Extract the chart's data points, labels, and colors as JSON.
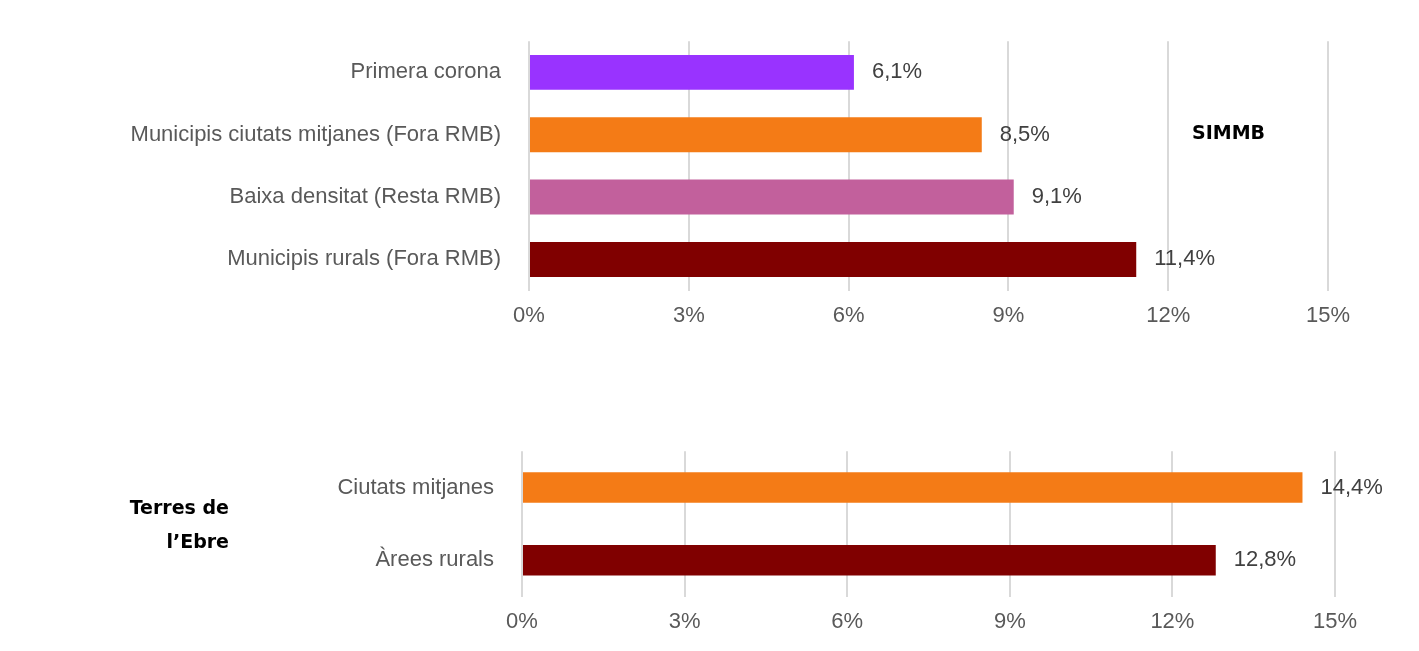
{
  "chart_data": [
    {
      "type": "bar",
      "orientation": "horizontal",
      "categories": [
        "Primera corona",
        "Municipis ciutats mitjanes (Fora RMB)",
        "Baixa densitat (Resta RMB)",
        "Municipis rurals (Fora RMB)"
      ],
      "values": [
        6.1,
        8.5,
        9.1,
        11.4
      ],
      "colors": [
        "#9933ff",
        "#f47b16",
        "#c2609c",
        "#800000"
      ],
      "value_labels": [
        "6,1%",
        "8,5%",
        "9,1%",
        "11,4%"
      ],
      "xlim": [
        0,
        15
      ],
      "xticks": [
        {
          "value": 0,
          "label": "0%"
        },
        {
          "value": 3,
          "label": "3%"
        },
        {
          "value": 6,
          "label": "6%"
        },
        {
          "value": 9,
          "label": "9%"
        },
        {
          "value": 12,
          "label": "12%"
        },
        {
          "value": 15,
          "label": "15%"
        }
      ],
      "grid": "x",
      "legend": false,
      "annotations": [
        "SIMMB"
      ]
    },
    {
      "type": "bar",
      "orientation": "horizontal",
      "categories": [
        "Ciutats mitjanes",
        "Àrees rurals"
      ],
      "values": [
        14.4,
        12.8
      ],
      "colors": [
        "#f47b16",
        "#800000"
      ],
      "value_labels": [
        "14,4%",
        "12,8%"
      ],
      "xlim": [
        0,
        15
      ],
      "xticks": [
        {
          "value": 0,
          "label": "0%"
        },
        {
          "value": 3,
          "label": "3%"
        },
        {
          "value": 6,
          "label": "6%"
        },
        {
          "value": 9,
          "label": "9%"
        },
        {
          "value": 12,
          "label": "12%"
        },
        {
          "value": 15,
          "label": "15%"
        }
      ],
      "grid": "x",
      "legend": false,
      "annotations": [
        "Terres de l’Ebre"
      ]
    }
  ]
}
